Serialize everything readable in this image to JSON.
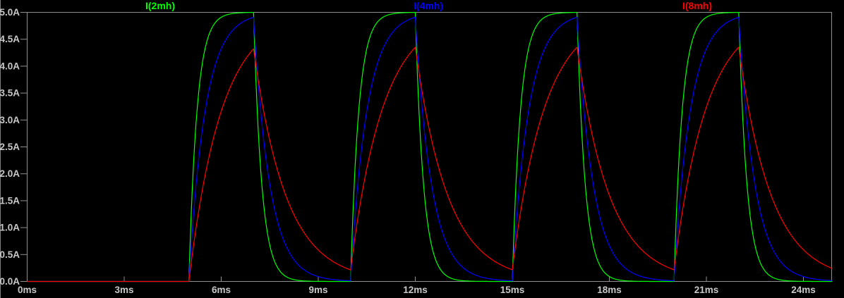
{
  "window": {
    "background": "#000000",
    "left_border_color": "#808080"
  },
  "axes": {
    "frame_color": "#909090",
    "tick_color": "#909090",
    "label_color": "#c8c8c8"
  },
  "chart_data": {
    "type": "line",
    "title": "",
    "xlabel": "",
    "ylabel": "",
    "x_unit": "ms",
    "y_unit": "A",
    "xlim_ms": [
      0,
      24.89
    ],
    "ylim_A": [
      0,
      5
    ],
    "grid": false,
    "legend_position": "top",
    "x_tick_values_ms": [
      0,
      3,
      6,
      9,
      12,
      15,
      18,
      21,
      24
    ],
    "x_tick_labels": [
      "0ms",
      "3ms",
      "6ms",
      "9ms",
      "12ms",
      "15ms",
      "18ms",
      "21ms",
      "24ms"
    ],
    "y_tick_values_A": [
      0,
      0.5,
      1,
      1.5,
      2,
      2.5,
      3,
      3.5,
      4,
      4.5,
      5
    ],
    "y_tick_labels": [
      "0.0A",
      "0.5A",
      "1.0A",
      "1.5A",
      "2.0A",
      "2.5A",
      "3.0A",
      "3.5A",
      "4.0A",
      "4.5A",
      "5.0A"
    ],
    "drive_pulse": {
      "amplitude_A": 5,
      "first_rise_ms": 5,
      "on_time_ms": 2,
      "period_ms": 5
    },
    "series": [
      {
        "name": "I(2mh)",
        "color": "#00ff00",
        "tau_ms": 0.25,
        "peak_A": 5.0,
        "min_A": 0.0
      },
      {
        "name": "I(4mh)",
        "color": "#0000ff",
        "tau_ms": 0.5,
        "peak_A": 4.91,
        "min_A": 0.0
      },
      {
        "name": "I(8mh)",
        "color": "#ff0000",
        "tau_ms": 1.0,
        "peak_A": 4.33,
        "min_A": 0.22
      }
    ]
  }
}
